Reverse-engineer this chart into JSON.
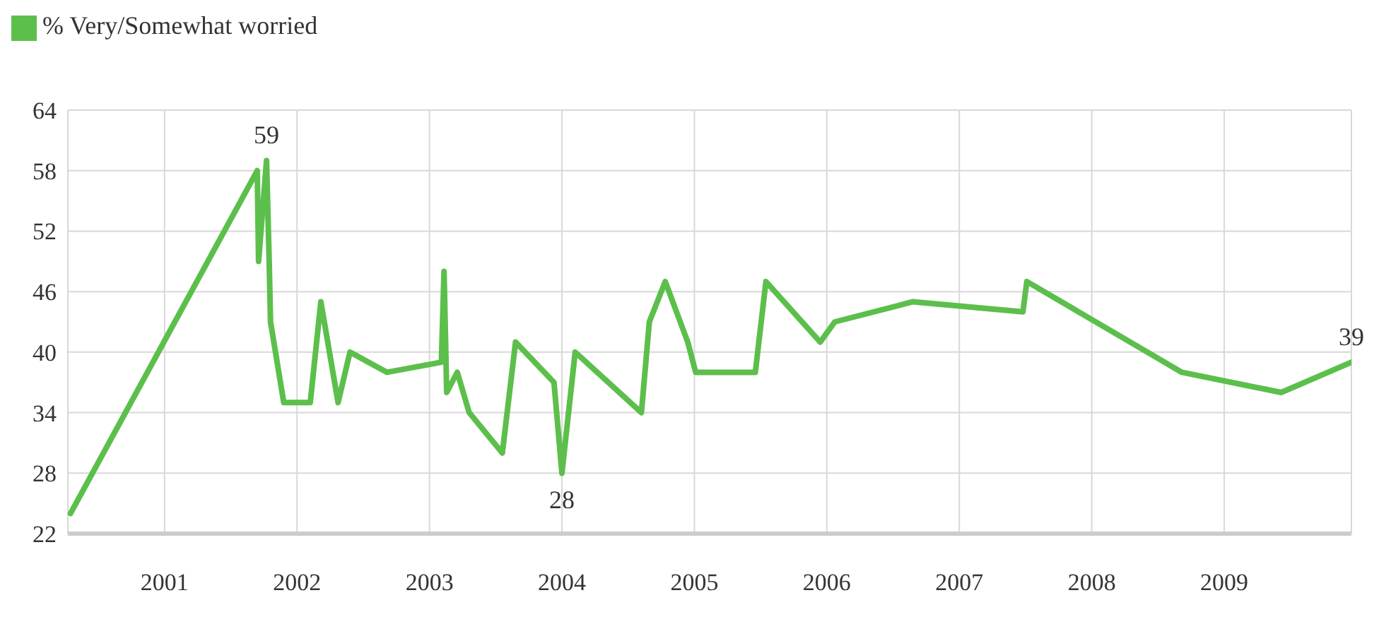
{
  "chart_data": {
    "type": "line",
    "x": [
      2000.29,
      2001.7,
      2001.71,
      2001.77,
      2001.79,
      2001.8,
      2001.9,
      2002.1,
      2002.18,
      2002.31,
      2002.4,
      2002.68,
      2003.09,
      2003.11,
      2003.13,
      2003.21,
      2003.3,
      2003.55,
      2003.65,
      2003.94,
      2004.0,
      2004.1,
      2004.6,
      2004.66,
      2004.78,
      2004.95,
      2005.01,
      2005.46,
      2005.54,
      2005.95,
      2006.06,
      2006.65,
      2007.48,
      2007.51,
      2008.68,
      2009.43,
      2009.96
    ],
    "series": [
      {
        "name": "% Very/Somewhat worried",
        "color": "#5cbf4c",
        "values": [
          24,
          58,
          49,
          59,
          49,
          43,
          35,
          35,
          45,
          35,
          40,
          38,
          39,
          48,
          36,
          38,
          34,
          30,
          41,
          37,
          28,
          40,
          34,
          43,
          47,
          41,
          38,
          38,
          47,
          41,
          43,
          45,
          44,
          47,
          38,
          36,
          39
        ]
      }
    ],
    "xlim": [
      2000.27,
      2009.96
    ],
    "xticks": [
      2001,
      2002,
      2003,
      2004,
      2005,
      2006,
      2007,
      2008,
      2009
    ],
    "ylim": [
      22,
      64
    ],
    "yticks": [
      22,
      28,
      34,
      40,
      46,
      52,
      58,
      64
    ],
    "grid": true,
    "legend": "top left",
    "marker": "none",
    "line_style": "solid",
    "annotations": [
      {
        "text": "59",
        "x": 2001.77,
        "y": 59
      },
      {
        "text": "28",
        "x": 2004.0,
        "y": 28
      },
      {
        "text": "39",
        "x": 2009.96,
        "y": 39
      }
    ]
  }
}
